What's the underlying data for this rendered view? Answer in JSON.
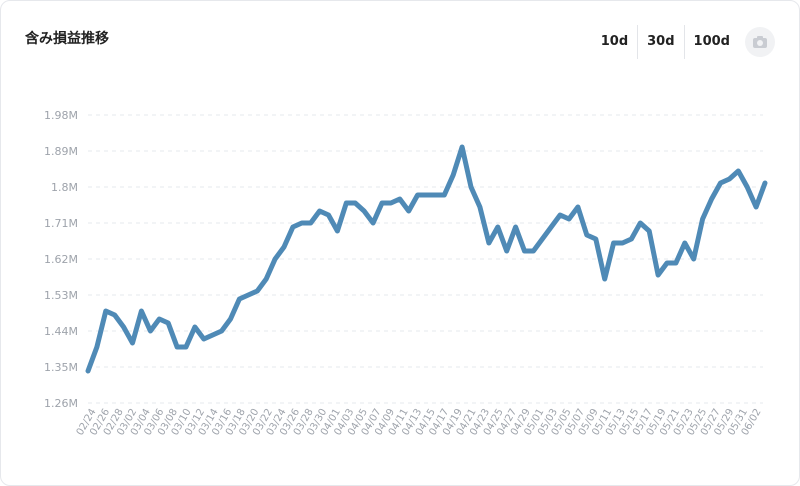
{
  "header": {
    "title": "含み損益推移",
    "ranges": [
      "10d",
      "30d",
      "100d"
    ],
    "camera_icon": "camera-icon"
  },
  "colors": {
    "line": "#4f8ab6",
    "grid": "#e6e8ec",
    "tick": "#9ea3ab"
  },
  "chart_data": {
    "type": "line",
    "title": "",
    "xlabel": "",
    "ylabel": "",
    "ylim": [
      1.26,
      1.98
    ],
    "y_ticks": [
      "1.26M",
      "1.35M",
      "1.44M",
      "1.53M",
      "1.62M",
      "1.71M",
      "1.8M",
      "1.89M",
      "1.98M"
    ],
    "y_tick_values": [
      1.26,
      1.35,
      1.44,
      1.53,
      1.62,
      1.71,
      1.8,
      1.89,
      1.98
    ],
    "x_ticks": [
      "02/24",
      "02/26",
      "02/28",
      "03/02",
      "03/04",
      "03/06",
      "03/08",
      "03/10",
      "03/12",
      "03/14",
      "03/16",
      "03/18",
      "03/20",
      "03/22",
      "03/24",
      "03/26",
      "03/28",
      "03/30",
      "04/01",
      "04/03",
      "04/05",
      "04/07",
      "04/09",
      "04/11",
      "04/13",
      "04/15",
      "04/17",
      "04/19",
      "04/21",
      "04/23",
      "04/25",
      "04/27",
      "04/29",
      "05/01",
      "05/03",
      "05/05",
      "05/07",
      "05/09",
      "05/11",
      "05/13",
      "05/15",
      "05/17",
      "05/19",
      "05/21",
      "05/23",
      "05/25",
      "05/27",
      "05/29",
      "05/31",
      "06/02"
    ],
    "series": [
      {
        "values": [
          1.34,
          1.4,
          1.49,
          1.48,
          1.45,
          1.41,
          1.49,
          1.44,
          1.47,
          1.46,
          1.4,
          1.4,
          1.45,
          1.42,
          1.43,
          1.44,
          1.47,
          1.52,
          1.53,
          1.54,
          1.57,
          1.62,
          1.65,
          1.7,
          1.71,
          1.71,
          1.74,
          1.73,
          1.69,
          1.76,
          1.76,
          1.74,
          1.71,
          1.76,
          1.76,
          1.77,
          1.74,
          1.78,
          1.78,
          1.78,
          1.78,
          1.83,
          1.9,
          1.8,
          1.75,
          1.66,
          1.7,
          1.64,
          1.7,
          1.64,
          1.64,
          1.67,
          1.7,
          1.73,
          1.72,
          1.75,
          1.68,
          1.67,
          1.57,
          1.66,
          1.66,
          1.67,
          1.71,
          1.69,
          1.58,
          1.61,
          1.61,
          1.66,
          1.62,
          1.72,
          1.77,
          1.81,
          1.82,
          1.84,
          1.8,
          1.75,
          1.81
        ]
      }
    ]
  }
}
